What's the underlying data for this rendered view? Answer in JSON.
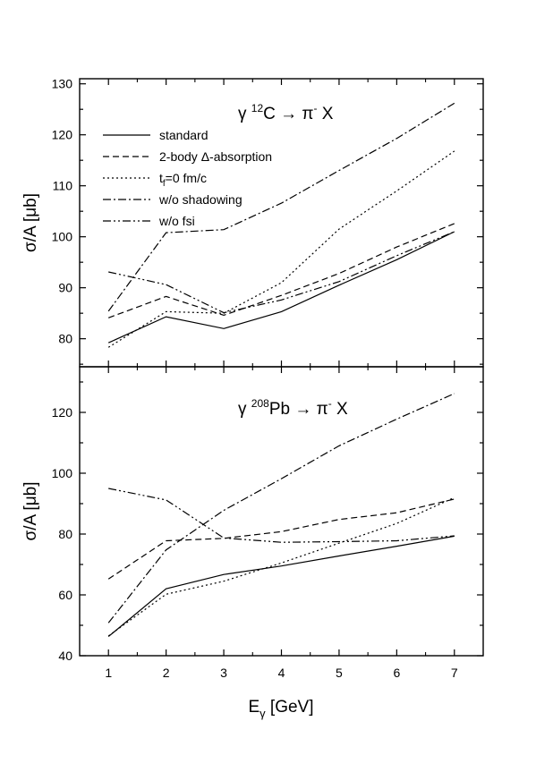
{
  "chart_data": {
    "type": "line",
    "xlabel": "E",
    "xlabel_sub": "γ",
    "xlabel_unit": " [GeV]",
    "x": [
      1,
      2,
      3,
      4,
      5,
      6,
      7
    ],
    "xlim": [
      0.5,
      7.5
    ],
    "x_tick_labels": [
      "1",
      "2",
      "3",
      "4",
      "5",
      "6",
      "7"
    ],
    "legend": {
      "placement": "top-left of upper panel",
      "entries": [
        {
          "id": "standard",
          "label": "standard",
          "style": "solid"
        },
        {
          "id": "two_body",
          "label": "2-body Δ-absorption",
          "style": "dashed"
        },
        {
          "id": "tf0",
          "label": "t",
          "label_sub": "f",
          "label_rest": "=0 fm/c",
          "style": "dotted"
        },
        {
          "id": "wo_shadowing",
          "label": "w/o shadowing",
          "style": "dashdot"
        },
        {
          "id": "wo_fsi",
          "label": "w/o fsi",
          "style": "dashdotdot"
        }
      ]
    },
    "panels": [
      {
        "id": "carbon",
        "title_pre": "γ ",
        "title_sup": "12",
        "title_mid": "C → π",
        "title_sup2": "-",
        "title_post": " X",
        "ylabel": "σ/A [μb]",
        "ylim": [
          74.5,
          131
        ],
        "y_ticks": [
          80,
          90,
          100,
          110,
          120,
          130
        ],
        "y_tick_labels": [
          "80",
          "90",
          "100",
          "110",
          "120",
          "130"
        ],
        "series": [
          {
            "name": "standard",
            "values": [
              79.2,
              84.3,
              82.0,
              85.3,
              90.5,
              95.5,
              101.0
            ]
          },
          {
            "name": "2-body Δ-absorption",
            "values": [
              84.1,
              88.3,
              84.6,
              88.5,
              92.8,
              98.0,
              102.6
            ]
          },
          {
            "name": "tf=0 fm/c",
            "values": [
              78.3,
              85.3,
              85.0,
              91.0,
              101.5,
              109.0,
              116.8
            ]
          },
          {
            "name": "w/o shadowing",
            "values": [
              85.4,
              100.8,
              101.4,
              106.6,
              113.0,
              119.3,
              126.2
            ]
          },
          {
            "name": "w/o fsi",
            "values": [
              93.1,
              90.6,
              85.1,
              87.6,
              91.2,
              96.3,
              101.0
            ]
          }
        ]
      },
      {
        "id": "lead",
        "title_pre": "γ ",
        "title_sup": "208",
        "title_mid": "Pb → π",
        "title_sup2": "-",
        "title_post": " X",
        "ylabel": "σ/A [μb]",
        "ylim": [
          40,
          135
        ],
        "y_ticks": [
          40,
          60,
          80,
          100,
          120
        ],
        "y_tick_labels": [
          "40",
          "60",
          "80",
          "100",
          "120"
        ],
        "series": [
          {
            "name": "standard",
            "values": [
              46.3,
              62.0,
              66.7,
              69.5,
              72.8,
              76.0,
              79.3
            ]
          },
          {
            "name": "2-body Δ-absorption",
            "values": [
              65.2,
              77.8,
              78.6,
              80.8,
              84.8,
              87.0,
              91.5
            ]
          },
          {
            "name": "tf=0 fm/c",
            "values": [
              46.5,
              60.2,
              64.5,
              70.5,
              77.0,
              83.5,
              92.0
            ]
          },
          {
            "name": "w/o shadowing",
            "values": [
              50.8,
              74.8,
              87.8,
              98.2,
              109.0,
              117.8,
              126.2
            ]
          },
          {
            "name": "w/o fsi",
            "values": [
              95.0,
              91.2,
              78.7,
              77.3,
              77.5,
              77.8,
              79.4
            ]
          }
        ]
      }
    ]
  }
}
